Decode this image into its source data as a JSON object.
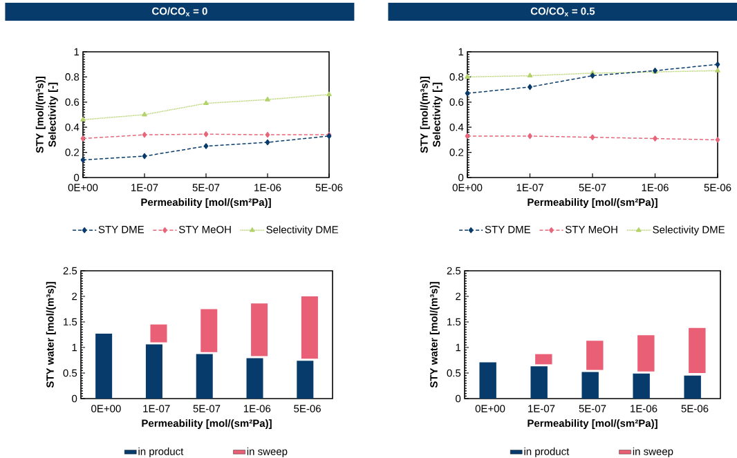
{
  "chart_data": [
    {
      "type": "line",
      "title": "CO/CO$_{x}$ = 0",
      "categories": [
        "0E+00",
        "1E-07",
        "5E-07",
        "1E-06",
        "5E-06"
      ],
      "xlabel": "Permeability [mol/(sm²Pa)]",
      "ylabel": "STY [mol/(m³s)] Selectivity [-]",
      "ylim": [
        0,
        1
      ],
      "yticks": [
        0,
        0.2,
        0.4,
        0.6,
        0.8,
        1
      ],
      "legend": "bottom",
      "series": [
        {
          "name": "STY DME",
          "color": "#073b6b",
          "marker": "diamond",
          "line_style": "dashed",
          "values": [
            0.14,
            0.17,
            0.25,
            0.28,
            0.33
          ]
        },
        {
          "name": "STY MeOH",
          "color": "#e8667a",
          "marker": "diamond",
          "line_style": "dashed",
          "values": [
            0.31,
            0.34,
            0.345,
            0.34,
            0.34
          ]
        },
        {
          "name": "Selectivity DME",
          "color": "#b4d26a",
          "marker": "triangle",
          "line_style": "dotted",
          "values": [
            0.46,
            0.5,
            0.59,
            0.62,
            0.66
          ]
        }
      ]
    },
    {
      "type": "line",
      "title": "CO/CO$_{x}$ = 0.5",
      "categories": [
        "0E+00",
        "1E-07",
        "5E-07",
        "1E-06",
        "5E-06"
      ],
      "xlabel": "Permeability [mol/(sm²Pa)]",
      "ylabel": "STY [mol/(m³s)] Selectivity [-]",
      "ylim": [
        0,
        1
      ],
      "yticks": [
        0,
        0.2,
        0.4,
        0.6,
        0.8,
        1
      ],
      "legend": "bottom",
      "series": [
        {
          "name": "STY DME",
          "color": "#073b6b",
          "marker": "diamond",
          "line_style": "dashed",
          "values": [
            0.67,
            0.72,
            0.81,
            0.85,
            0.9
          ]
        },
        {
          "name": "STY MeOH",
          "color": "#e8667a",
          "marker": "diamond",
          "line_style": "dashed",
          "values": [
            0.33,
            0.33,
            0.32,
            0.31,
            0.3
          ]
        },
        {
          "name": "Selectivity DME",
          "color": "#b4d26a",
          "marker": "triangle",
          "line_style": "dotted",
          "values": [
            0.8,
            0.81,
            0.83,
            0.84,
            0.85
          ]
        }
      ]
    },
    {
      "type": "bar",
      "categories": [
        "0E+00",
        "1E-07",
        "5E-07",
        "1E-06",
        "5E-06"
      ],
      "xlabel": "Permeability [mol/(sm²Pa)]",
      "ylabel": "STY water [mol/(m³s)]",
      "ylim": [
        0,
        2.5
      ],
      "yticks": [
        0,
        0.5,
        1,
        1.5,
        2,
        2.5
      ],
      "legend": "bottom",
      "series": [
        {
          "name": "in product",
          "color": "#073b6b",
          "values": [
            1.27,
            1.06,
            0.87,
            0.79,
            0.74
          ]
        },
        {
          "name": "in sweep",
          "color": "#e95f75",
          "base": [
            null,
            1.1,
            0.91,
            0.83,
            0.78
          ],
          "values": [
            null,
            0.35,
            0.84,
            1.03,
            1.22
          ]
        }
      ]
    },
    {
      "type": "bar",
      "categories": [
        "0E+00",
        "1E-07",
        "5E-07",
        "1E-06",
        "5E-06"
      ],
      "xlabel": "Permeability [mol/(sm²Pa)]",
      "ylabel": "STY water [mol/(m³s)]",
      "ylim": [
        0,
        2.5
      ],
      "yticks": [
        0,
        0.5,
        1,
        1.5,
        2,
        2.5
      ],
      "legend": "bottom",
      "series": [
        {
          "name": "in product",
          "color": "#073b6b",
          "values": [
            0.71,
            0.63,
            0.52,
            0.49,
            0.45
          ]
        },
        {
          "name": "in sweep",
          "color": "#e95f75",
          "base": [
            null,
            0.67,
            0.56,
            0.53,
            0.5
          ],
          "values": [
            null,
            0.2,
            0.57,
            0.71,
            0.88
          ]
        }
      ]
    }
  ]
}
